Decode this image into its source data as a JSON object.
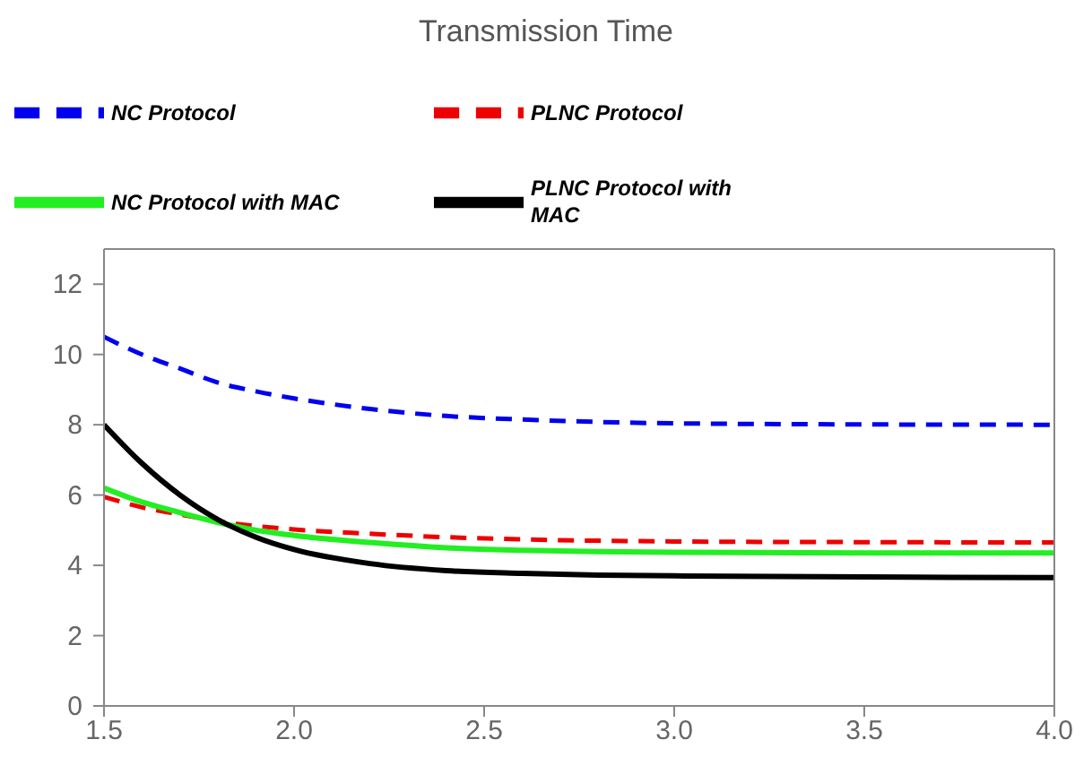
{
  "chart_data": {
    "type": "line",
    "title": "Transmission Time",
    "legend": "top",
    "x": [
      1.5,
      1.6,
      1.7,
      1.8,
      1.9,
      2.0,
      2.2,
      2.4,
      2.6,
      2.8,
      3.0,
      3.5,
      4.0
    ],
    "series": [
      {
        "name": "NC Protocol",
        "color": "#0000ee",
        "line_style": "dashed",
        "values": [
          10.5,
          10.0,
          9.6,
          9.2,
          8.95,
          8.75,
          8.45,
          8.25,
          8.15,
          8.08,
          8.04,
          8.01,
          8.0
        ]
      },
      {
        "name": "PLNC Protocol",
        "color": "#ee0000",
        "line_style": "dashed",
        "values": [
          5.95,
          5.65,
          5.45,
          5.25,
          5.12,
          5.02,
          4.9,
          4.8,
          4.74,
          4.7,
          4.68,
          4.66,
          4.65
        ]
      },
      {
        "name": "NC Protocol with MAC",
        "color": "#22ee22",
        "line_style": "solid",
        "values": [
          6.2,
          5.8,
          5.5,
          5.22,
          5.0,
          4.85,
          4.65,
          4.5,
          4.43,
          4.39,
          4.37,
          4.35,
          4.35
        ]
      },
      {
        "name": "PLNC Protocol with MAC",
        "color": "#000000",
        "line_style": "solid",
        "values": [
          8.0,
          6.9,
          6.0,
          5.3,
          4.8,
          4.45,
          4.05,
          3.85,
          3.77,
          3.72,
          3.7,
          3.67,
          3.65
        ]
      }
    ],
    "xlim": [
      1.5,
      4.0
    ],
    "xticks": [
      1.5,
      {
        "value": 2,
        "label": "2.0"
      },
      2.5,
      {
        "value": 3,
        "label": "3.0"
      },
      3.5,
      {
        "value": 4,
        "label": "4.0"
      }
    ],
    "ylim": [
      0,
      13
    ],
    "yticks": [
      0,
      2,
      4,
      6,
      8,
      10,
      12
    ],
    "grid": false,
    "marker": "none"
  }
}
